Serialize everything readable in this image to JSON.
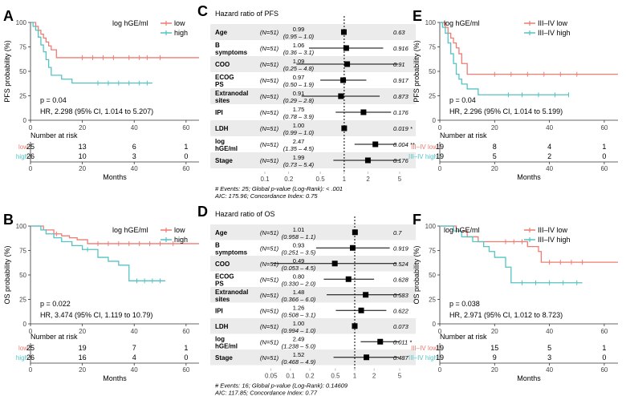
{
  "colors": {
    "low": "#ef7b73",
    "high": "#54c3c4",
    "grid": "#ebebeb",
    "axis": "#333333"
  },
  "chart_data": [
    {
      "panel": "A",
      "type": "line",
      "subtype": "kaplan-meier",
      "ylabel": "PFS probability (%)",
      "xlabel": "Months",
      "xlim": [
        0,
        65
      ],
      "ylim": [
        0,
        100
      ],
      "xticks": [
        0,
        20,
        40,
        60
      ],
      "yticks": [
        0,
        25,
        50,
        75,
        100
      ],
      "legend_title": "log hGE/ml",
      "series": [
        {
          "name": "low",
          "key": "low",
          "x": [
            0,
            2,
            3,
            4,
            5,
            6,
            7,
            8,
            10,
            65
          ],
          "y": [
            100,
            96,
            92,
            88,
            84,
            80,
            76,
            72,
            64,
            64
          ],
          "censor": [
            [
              20,
              64
            ],
            [
              24,
              64
            ],
            [
              28,
              64
            ],
            [
              32,
              64
            ],
            [
              38,
              64
            ],
            [
              42,
              64
            ],
            [
              45,
              64
            ],
            [
              50,
              64
            ]
          ]
        },
        {
          "name": "high",
          "key": "high",
          "x": [
            0,
            1,
            2,
            3,
            4,
            5,
            6,
            7,
            8,
            12,
            16,
            47
          ],
          "y": [
            100,
            96,
            92,
            85,
            77,
            70,
            62,
            54,
            46,
            42,
            38,
            38
          ],
          "censor": [
            [
              26,
              38
            ],
            [
              30,
              38
            ],
            [
              34,
              38
            ],
            [
              38,
              38
            ],
            [
              42,
              38
            ],
            [
              45,
              38
            ]
          ]
        }
      ],
      "pvalue": "p = 0.04",
      "hr": "HR, 2.298 (95% CI, 1.014 to 5.207)",
      "risk_title": "Number at risk",
      "risk_x": [
        0,
        20,
        40,
        60
      ],
      "risk_rows": [
        {
          "label": "low",
          "key": "low",
          "counts": [
            "25",
            "13",
            "6",
            "1"
          ]
        },
        {
          "label": "high",
          "key": "high",
          "counts": [
            "26",
            "10",
            "3",
            "0"
          ]
        }
      ]
    },
    {
      "panel": "B",
      "type": "line",
      "subtype": "kaplan-meier",
      "ylabel": "OS probability (%)",
      "xlabel": "Months",
      "xlim": [
        0,
        65
      ],
      "ylim": [
        0,
        100
      ],
      "xticks": [
        0,
        20,
        40,
        60
      ],
      "yticks": [
        0,
        25,
        50,
        75,
        100
      ],
      "legend_title": "log hGE/ml",
      "series": [
        {
          "name": "low",
          "key": "low",
          "x": [
            0,
            5,
            9,
            12,
            15,
            18,
            22,
            65
          ],
          "y": [
            100,
            96,
            92,
            90,
            88,
            86,
            82,
            82
          ],
          "censor": [
            [
              10,
              92
            ],
            [
              26,
              82
            ],
            [
              30,
              82
            ],
            [
              34,
              82
            ],
            [
              38,
              82
            ],
            [
              42,
              82
            ],
            [
              46,
              82
            ],
            [
              50,
              82
            ],
            [
              55,
              82
            ]
          ]
        },
        {
          "name": "high",
          "key": "high",
          "x": [
            0,
            4,
            6,
            9,
            12,
            16,
            20,
            26,
            30,
            34,
            38,
            52
          ],
          "y": [
            100,
            96,
            92,
            88,
            84,
            80,
            76,
            68,
            64,
            60,
            44,
            44
          ],
          "censor": [
            [
              22,
              76
            ],
            [
              41,
              44
            ],
            [
              44,
              44
            ],
            [
              47,
              44
            ],
            [
              50,
              44
            ]
          ]
        }
      ],
      "pvalue": "p = 0.022",
      "hr": "HR, 3.474 (95% CI, 1.119 to 10.79)",
      "risk_title": "Number at risk",
      "risk_x": [
        0,
        20,
        40,
        60
      ],
      "risk_rows": [
        {
          "label": "low",
          "key": "low",
          "counts": [
            "25",
            "19",
            "7",
            "1"
          ]
        },
        {
          "label": "high",
          "key": "high",
          "counts": [
            "26",
            "16",
            "4",
            "0"
          ]
        }
      ]
    },
    {
      "panel": "C",
      "type": "forest",
      "title": "Hazard ratio of PFS",
      "xscale": "log",
      "xlim": [
        0.1,
        5
      ],
      "xticks": [
        0.1,
        0.2,
        0.5,
        1,
        2,
        5
      ],
      "xticklabels": [
        "0.1",
        "0.2",
        "0.5",
        "1",
        "2",
        "5"
      ],
      "rows": [
        {
          "label": "Age",
          "n": "(N=51)",
          "hr_text": "0.99",
          "ci_text": "(0.95 – 1.0)",
          "hr": 0.99,
          "lo": 0.95,
          "hi": 1.02,
          "p": "0.63"
        },
        {
          "label": "B symptoms",
          "n": "(N=51)",
          "hr_text": "1.06",
          "ci_text": "(0.36 – 3.1)",
          "hr": 1.06,
          "lo": 0.36,
          "hi": 3.1,
          "p": "0.916"
        },
        {
          "label": "COO",
          "n": "(N=51)",
          "hr_text": "1.09",
          "ci_text": "(0.25 – 4.8)",
          "hr": 1.09,
          "lo": 0.25,
          "hi": 4.8,
          "p": "0.91"
        },
        {
          "label": "ECOG PS",
          "n": "(N=51)",
          "hr_text": "0.97",
          "ci_text": "(0.50 – 1.9)",
          "hr": 0.97,
          "lo": 0.5,
          "hi": 1.9,
          "p": "0.917"
        },
        {
          "label": "Extranodal sites",
          "n": "(N=51)",
          "hr_text": "0.91",
          "ci_text": "(0.29 – 2.8)",
          "hr": 0.91,
          "lo": 0.29,
          "hi": 2.8,
          "p": "0.873"
        },
        {
          "label": "IPI",
          "n": "(N=51)",
          "hr_text": "1.75",
          "ci_text": "(0.78 – 3.9)",
          "hr": 1.75,
          "lo": 0.78,
          "hi": 3.9,
          "p": "0.176"
        },
        {
          "label": "LDH",
          "n": "(N=51)",
          "hr_text": "1.00",
          "ci_text": "(0.99 – 1.0)",
          "hr": 1.0,
          "lo": 0.99,
          "hi": 1.01,
          "p": "0.019 *"
        },
        {
          "label": "log hGE/ml",
          "n": "(N=51)",
          "hr_text": "2.47",
          "ci_text": "(1.35 – 4.5)",
          "hr": 2.47,
          "lo": 1.35,
          "hi": 4.5,
          "p": "0.004 **"
        },
        {
          "label": "Stage",
          "n": "(N=51)",
          "hr_text": "1.99",
          "ci_text": "(0.73 – 5.4)",
          "hr": 1.99,
          "lo": 0.73,
          "hi": 5.4,
          "p": "0.176"
        }
      ],
      "footnote1": "# Events: 25; Global p-value (Log-Rank): < .001",
      "footnote2": "AIC: 175.96; Concordance Index: 0.75"
    },
    {
      "panel": "D",
      "type": "forest",
      "title": "Hazard ratio of OS",
      "xscale": "log",
      "xlim": [
        0.04,
        5
      ],
      "xticks": [
        0.05,
        0.1,
        0.2,
        0.5,
        1,
        2,
        5
      ],
      "xticklabels": [
        "0.05",
        "0.1",
        "0.2",
        "0.5",
        "1",
        "2",
        "5"
      ],
      "rows": [
        {
          "label": "Age",
          "n": "(N=51)",
          "hr_text": "1.01",
          "ci_text": "(0.958 – 1.1)",
          "hr": 1.01,
          "lo": 0.958,
          "hi": 1.1,
          "p": "0.7"
        },
        {
          "label": "B symptoms",
          "n": "(N=51)",
          "hr_text": "0.93",
          "ci_text": "(0.251 – 3.5)",
          "hr": 0.93,
          "lo": 0.251,
          "hi": 3.5,
          "p": "0.919"
        },
        {
          "label": "COO",
          "n": "(N=51)",
          "hr_text": "0.49",
          "ci_text": "(0.053 – 4.5)",
          "hr": 0.49,
          "lo": 0.053,
          "hi": 4.5,
          "p": "0.524"
        },
        {
          "label": "ECOG PS",
          "n": "(N=51)",
          "hr_text": "0.80",
          "ci_text": "(0.330 – 2.0)",
          "hr": 0.8,
          "lo": 0.33,
          "hi": 2.0,
          "p": "0.628"
        },
        {
          "label": "Extranodal sites",
          "n": "(N=51)",
          "hr_text": "1.48",
          "ci_text": "(0.366 – 6.0)",
          "hr": 1.48,
          "lo": 0.366,
          "hi": 6.0,
          "p": "0.583"
        },
        {
          "label": "IPI",
          "n": "(N=51)",
          "hr_text": "1.26",
          "ci_text": "(0.508 – 3.1)",
          "hr": 1.26,
          "lo": 0.508,
          "hi": 3.1,
          "p": "0.622"
        },
        {
          "label": "LDH",
          "n": "(N=51)",
          "hr_text": "1.00",
          "ci_text": "(0.994 – 1.0)",
          "hr": 1.0,
          "lo": 0.994,
          "hi": 1.01,
          "p": "0.073"
        },
        {
          "label": "log hGE/ml",
          "n": "(N=51)",
          "hr_text": "2.49",
          "ci_text": "(1.238 – 5.0)",
          "hr": 2.49,
          "lo": 1.238,
          "hi": 5.0,
          "p": "0.011 *"
        },
        {
          "label": "Stage",
          "n": "(N=51)",
          "hr_text": "1.52",
          "ci_text": "(0.468 – 4.9)",
          "hr": 1.52,
          "lo": 0.468,
          "hi": 4.9,
          "p": "0.487"
        }
      ],
      "footnote1": "# Events: 16; Global p-value (Log-Rank): 0.14609",
      "footnote2": "AIC: 117.85; Concordance Index: 0.77"
    },
    {
      "panel": "E",
      "type": "line",
      "subtype": "kaplan-meier",
      "ylabel": "PFS probability (%)",
      "xlabel": "Months",
      "xlim": [
        0,
        65
      ],
      "ylim": [
        0,
        100
      ],
      "xticks": [
        0,
        20,
        40,
        60
      ],
      "yticks": [
        0,
        25,
        50,
        75,
        100
      ],
      "legend_title": "log hGE/ml",
      "series": [
        {
          "name": "III–IV low",
          "key": "low",
          "x": [
            0,
            2,
            3,
            4,
            5,
            6,
            7,
            8,
            10,
            65
          ],
          "y": [
            100,
            95,
            89,
            84,
            79,
            74,
            68,
            58,
            47,
            47
          ],
          "censor": [
            [
              20,
              47
            ],
            [
              26,
              47
            ],
            [
              32,
              47
            ],
            [
              38,
              47
            ],
            [
              44,
              47
            ],
            [
              50,
              47
            ]
          ]
        },
        {
          "name": "III–IV high",
          "key": "high",
          "x": [
            0,
            1,
            2,
            3,
            4,
            5,
            6,
            7,
            8,
            10,
            14,
            47
          ],
          "y": [
            100,
            95,
            89,
            79,
            68,
            58,
            47,
            42,
            37,
            32,
            26,
            26
          ],
          "censor": [
            [
              25,
              26
            ],
            [
              30,
              26
            ],
            [
              36,
              26
            ],
            [
              42,
              26
            ],
            [
              47,
              26
            ]
          ]
        }
      ],
      "pvalue": "p = 0.04",
      "hr": "HR, 2.296 (95% CI, 1.014 to 5.199)",
      "risk_title": "Number at risk",
      "risk_x": [
        0,
        20,
        40,
        60
      ],
      "risk_rows": [
        {
          "label": "III–IV low",
          "key": "low",
          "counts": [
            "19",
            "8",
            "4",
            "1"
          ]
        },
        {
          "label": "III–IV high",
          "key": "high",
          "counts": [
            "19",
            "5",
            "2",
            "0"
          ]
        }
      ]
    },
    {
      "panel": "F",
      "type": "line",
      "subtype": "kaplan-meier",
      "ylabel": "OS probability (%)",
      "xlabel": "Months",
      "xlim": [
        0,
        65
      ],
      "ylim": [
        0,
        100
      ],
      "xticks": [
        0,
        20,
        40,
        60
      ],
      "yticks": [
        0,
        25,
        50,
        75,
        100
      ],
      "legend_title": "log hGE/ml",
      "series": [
        {
          "name": "III–IV low",
          "key": "low",
          "x": [
            0,
            6,
            10,
            14,
            18,
            22,
            32,
            36,
            37,
            65
          ],
          "y": [
            100,
            95,
            89,
            84,
            84,
            84,
            79,
            74,
            63,
            63
          ],
          "censor": [
            [
              24,
              84
            ],
            [
              27,
              84
            ],
            [
              30,
              84
            ],
            [
              40,
              63
            ],
            [
              44,
              63
            ],
            [
              48,
              63
            ],
            [
              52,
              63
            ]
          ]
        },
        {
          "name": "III–IV high",
          "key": "high",
          "x": [
            0,
            5,
            8,
            12,
            16,
            18,
            20,
            24,
            26,
            52
          ],
          "y": [
            100,
            95,
            89,
            84,
            79,
            74,
            68,
            58,
            42,
            42
          ],
          "censor": [
            [
              30,
              42
            ],
            [
              35,
              42
            ],
            [
              40,
              42
            ],
            [
              45,
              42
            ],
            [
              50,
              42
            ]
          ]
        }
      ],
      "pvalue": "p = 0.038",
      "hr": "HR, 2.971 (95% CI, 1.012 to 8.723)",
      "risk_title": "Number at risk",
      "risk_x": [
        0,
        20,
        40,
        60
      ],
      "risk_rows": [
        {
          "label": "III–IV low",
          "key": "low",
          "counts": [
            "19",
            "15",
            "5",
            "1"
          ]
        },
        {
          "label": "III–IV high",
          "key": "high",
          "counts": [
            "19",
            "9",
            "3",
            "0"
          ]
        }
      ]
    }
  ]
}
